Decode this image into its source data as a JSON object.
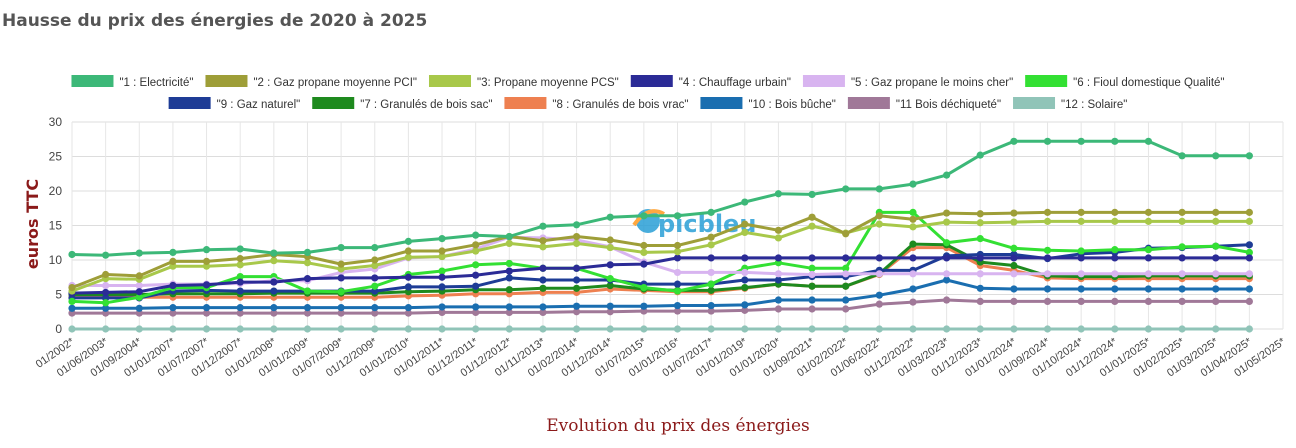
{
  "chart_data": {
    "type": "line",
    "title": "Hausse du prix des énergies de 2020 à 2025",
    "xlabel": "Evolution du prix des énergies",
    "ylabel": "euros TTC",
    "ylim": [
      0,
      30
    ],
    "yticks": [
      0,
      5,
      10,
      15,
      20,
      25,
      30
    ],
    "grid": true,
    "legend_position": "top",
    "watermark": "picbleu",
    "categories": [
      "01/2002*",
      "01/06/2003*",
      "01/09/2004*",
      "01/01/2007*",
      "01/07/2007*",
      "01/12/2007*",
      "01/01/2008*",
      "01/01/2009*",
      "01/07/2009*",
      "01/12/2009*",
      "01/01/2010*",
      "01/01/2011*",
      "01/12/2011*",
      "01/12/2012*",
      "01/11/2013*",
      "01/02/2014*",
      "01/12/2014*",
      "01/07/2015*",
      "01/01/2016*",
      "01/07/2017*",
      "01/01/2019*",
      "01/01/2020*",
      "01/09/2021*",
      "01/02/2022*",
      "01/06/2022*",
      "01/12/2022*",
      "01/03/2023*",
      "01/12/2023*",
      "01/01/2024*",
      "01/09/2024*",
      "01/10/2024*",
      "01/12/2024*",
      "01/01/2025*",
      "01/02/2025*",
      "01/03/2025*",
      "01/04/2025*",
      "01/05/2025*"
    ],
    "series": [
      {
        "name": "\"1 : Electricité\"",
        "color": "#3cb878",
        "values": [
          10.8,
          10.7,
          11.0,
          11.1,
          11.5,
          11.6,
          11.0,
          11.1,
          11.8,
          11.8,
          12.7,
          13.1,
          13.6,
          13.4,
          14.9,
          15.1,
          16.2,
          16.4,
          16.4,
          16.9,
          18.4,
          19.6,
          19.5,
          20.3,
          20.3,
          21.0,
          22.3,
          25.2,
          27.2,
          27.2,
          27.2,
          27.2,
          27.2,
          25.1,
          25.1,
          25.1,
          null
        ]
      },
      {
        "name": "\"2 : Gaz propane moyenne PCI\"",
        "color": "#9e9e38",
        "values": [
          6.0,
          7.9,
          7.7,
          9.8,
          9.8,
          10.2,
          10.8,
          10.5,
          9.4,
          10.0,
          11.3,
          11.3,
          12.2,
          13.4,
          12.8,
          13.4,
          12.9,
          12.1,
          12.1,
          13.3,
          15.2,
          14.3,
          16.2,
          13.8,
          16.4,
          15.9,
          16.8,
          16.7,
          16.8,
          16.9,
          16.9,
          16.9,
          16.9,
          16.9,
          16.9,
          16.9,
          null
        ]
      },
      {
        "name": "\"3: Propane moyenne PCS\"",
        "color": "#a8c84a",
        "values": [
          5.5,
          7.3,
          7.2,
          9.1,
          9.1,
          9.3,
          9.9,
          9.6,
          8.7,
          9.2,
          10.4,
          10.5,
          11.3,
          12.4,
          11.9,
          12.4,
          11.8,
          11.1,
          11.2,
          12.2,
          14.0,
          13.2,
          14.9,
          13.9,
          15.2,
          14.8,
          15.5,
          15.4,
          15.5,
          15.6,
          15.6,
          15.6,
          15.6,
          15.6,
          15.6,
          15.6,
          null
        ]
      },
      {
        "name": "\"4 : Chauffage urbain\"",
        "color": "#2b2b96",
        "values": [
          5.2,
          5.3,
          5.4,
          6.3,
          6.4,
          6.8,
          6.8,
          7.3,
          7.4,
          7.4,
          7.5,
          7.5,
          7.8,
          8.4,
          8.8,
          8.8,
          9.3,
          9.4,
          10.3,
          10.3,
          10.3,
          10.3,
          10.3,
          10.3,
          10.3,
          10.3,
          10.3,
          10.3,
          10.3,
          10.3,
          10.3,
          10.3,
          10.3,
          10.3,
          10.3,
          10.3,
          null
        ]
      },
      {
        "name": "\"5 : Gaz propane le moins cher\"",
        "color": "#d8b4f0",
        "values": [
          6.3,
          6.3,
          6.3,
          6.5,
          6.5,
          6.6,
          7.0,
          7.0,
          8.2,
          8.7,
          10.3,
          10.5,
          11.6,
          13.3,
          13.2,
          12.9,
          11.9,
          9.7,
          8.2,
          8.2,
          8.2,
          8.0,
          7.9,
          8.0,
          8.0,
          8.0,
          8.0,
          8.0,
          8.0,
          8.0,
          8.0,
          8.0,
          8.0,
          8.0,
          8.0,
          8.0,
          null
        ]
      },
      {
        "name": "\"6 : Fioul domestique Qualité\"",
        "color": "#33e033",
        "values": [
          4.0,
          3.8,
          4.6,
          6.0,
          6.0,
          7.6,
          7.6,
          5.5,
          5.4,
          6.2,
          7.9,
          8.4,
          9.3,
          9.5,
          8.8,
          8.8,
          7.3,
          6.0,
          5.5,
          6.5,
          8.8,
          9.6,
          8.8,
          8.8,
          16.9,
          16.9,
          12.5,
          13.1,
          11.7,
          11.4,
          11.3,
          11.5,
          11.5,
          11.9,
          12.0,
          11.1,
          null
        ]
      },
      {
        "name": "\"9 : Gaz naturel\"",
        "color": "#1e3c96",
        "values": [
          4.5,
          4.5,
          4.5,
          5.5,
          5.6,
          5.5,
          5.5,
          5.5,
          5.5,
          5.5,
          6.1,
          6.1,
          6.2,
          7.4,
          7.1,
          7.1,
          7.1,
          6.5,
          6.5,
          6.5,
          7.1,
          7.1,
          7.6,
          7.6,
          8.5,
          8.5,
          10.6,
          10.8,
          10.8,
          10.2,
          10.9,
          11.1,
          11.7,
          11.8,
          12.0,
          12.2,
          null
        ]
      },
      {
        "name": "\"7 : Granulés de bois sac\"",
        "color": "#1e8a1e",
        "values": [
          5.0,
          5.0,
          5.0,
          5.1,
          5.1,
          5.1,
          5.2,
          5.2,
          5.2,
          5.2,
          5.4,
          5.5,
          5.7,
          5.7,
          5.9,
          5.9,
          6.3,
          5.8,
          5.6,
          5.6,
          6.0,
          6.5,
          6.2,
          6.2,
          8.0,
          12.3,
          12.2,
          9.7,
          9.2,
          7.7,
          7.6,
          7.6,
          7.7,
          7.7,
          7.7,
          7.7,
          null
        ]
      },
      {
        "name": "\"8 : Granulés de bois vrac\"",
        "color": "#ee8050",
        "values": [
          4.6,
          4.6,
          4.6,
          4.6,
          4.6,
          4.6,
          4.6,
          4.6,
          4.6,
          4.6,
          4.8,
          4.9,
          5.1,
          5.1,
          5.3,
          5.3,
          5.8,
          5.6,
          5.4,
          5.4,
          5.9,
          6.5,
          6.2,
          6.2,
          7.9,
          11.8,
          11.8,
          9.2,
          8.5,
          7.4,
          7.3,
          7.3,
          7.3,
          7.3,
          7.3,
          7.3,
          null
        ]
      },
      {
        "name": "\"10 : Bois bûche\"",
        "color": "#1a6eb0",
        "values": [
          3.0,
          3.0,
          3.0,
          3.1,
          3.1,
          3.1,
          3.1,
          3.1,
          3.1,
          3.1,
          3.1,
          3.2,
          3.2,
          3.2,
          3.2,
          3.3,
          3.3,
          3.3,
          3.4,
          3.4,
          3.5,
          4.2,
          4.2,
          4.2,
          4.9,
          5.8,
          7.1,
          5.9,
          5.8,
          5.8,
          5.8,
          5.8,
          5.8,
          5.8,
          5.8,
          5.8,
          null
        ]
      },
      {
        "name": "\"11 Bois déchiqueté\"",
        "color": "#a07898",
        "values": [
          2.3,
          2.3,
          2.3,
          2.3,
          2.3,
          2.3,
          2.3,
          2.3,
          2.3,
          2.3,
          2.3,
          2.4,
          2.4,
          2.4,
          2.4,
          2.5,
          2.5,
          2.6,
          2.6,
          2.6,
          2.7,
          2.9,
          2.9,
          2.9,
          3.6,
          3.9,
          4.2,
          4.0,
          4.0,
          4.0,
          4.0,
          4.0,
          4.0,
          4.0,
          4.0,
          4.0,
          null
        ]
      },
      {
        "name": "\"12 : Solaire\"",
        "color": "#90c4b8",
        "values": [
          0,
          0,
          0,
          0,
          0,
          0,
          0,
          0,
          0,
          0,
          0,
          0,
          0,
          0,
          0,
          0,
          0,
          0,
          0,
          0,
          0,
          0,
          0,
          0,
          0,
          0,
          0,
          0,
          0,
          0,
          0,
          0,
          0,
          0,
          0,
          0,
          null
        ]
      }
    ]
  }
}
